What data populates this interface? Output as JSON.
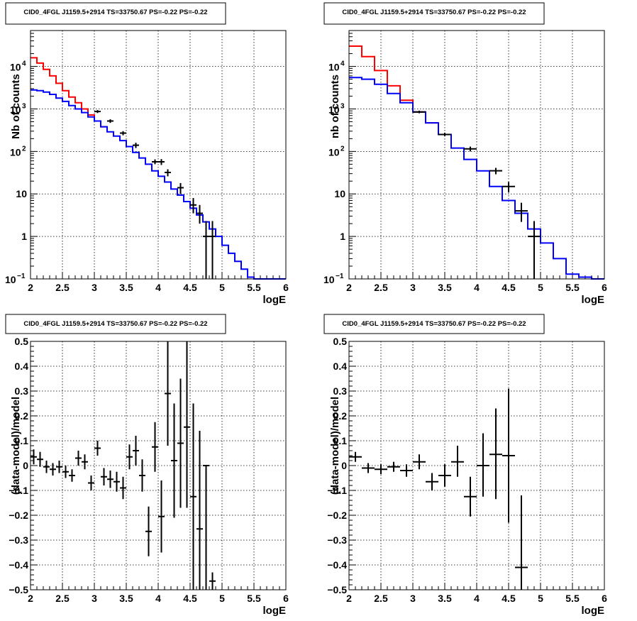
{
  "chart_data": [
    {
      "type": "line",
      "title": "CID0_4FGL J1159.5+2914 TS=33750.67 PS=-0.22 PS=-0.22",
      "xlabel": "logE",
      "ylabel": "Nb of counts",
      "yscale": "log",
      "xlim": [
        2,
        6
      ],
      "ylim": [
        0.1,
        70000
      ],
      "grid": true,
      "xticks": [
        "2",
        "2.5",
        "3",
        "3.5",
        "4",
        "4.5",
        "5",
        "5.5",
        "6"
      ],
      "yticks": [
        {
          "v": 0.1,
          "base": "10",
          "exp": "−1"
        },
        {
          "v": 1,
          "text": "1"
        },
        {
          "v": 10,
          "text": "10"
        },
        {
          "v": 100,
          "base": "10",
          "exp": "2"
        },
        {
          "v": 1000,
          "base": "10",
          "exp": "3"
        },
        {
          "v": 10000,
          "base": "10",
          "exp": "4"
        }
      ],
      "series": [
        {
          "color": "#ff0000",
          "step_edges": [
            2.0,
            2.1,
            2.2,
            2.3,
            2.4,
            2.5,
            2.6,
            2.7,
            2.8,
            2.9,
            3.0,
            3.1,
            3.2
          ],
          "values": [
            16000,
            12000,
            8500,
            6000,
            4000,
            2700,
            1900,
            1400,
            1000,
            720,
            520,
            380
          ]
        },
        {
          "color": "#0000ff",
          "step_edges": [
            2.0,
            2.1,
            2.2,
            2.3,
            2.4,
            2.5,
            2.6,
            2.7,
            2.8,
            2.9,
            3.0,
            3.1,
            3.2,
            3.3,
            3.4,
            3.5,
            3.6,
            3.7,
            3.8,
            3.9,
            4.0,
            4.1,
            4.2,
            4.3,
            4.4,
            4.5,
            4.6,
            4.7,
            4.8,
            4.9,
            5.0,
            5.1,
            5.2,
            5.3,
            5.4,
            5.5,
            6.0
          ],
          "values": [
            2800,
            2700,
            2500,
            2200,
            1800,
            1500,
            1200,
            1000,
            820,
            650,
            520,
            380,
            290,
            230,
            180,
            130,
            95,
            70,
            50,
            35,
            26,
            19,
            13,
            9.4,
            6.6,
            4.6,
            3.2,
            2.2,
            1.5,
            1.0,
            0.62,
            0.4,
            0.26,
            0.17,
            0.11,
            0.1
          ]
        }
      ],
      "points": [
        {
          "x": 3.05,
          "y": 870,
          "lo": 800,
          "hi": 940
        },
        {
          "x": 3.25,
          "y": 520,
          "lo": 470,
          "hi": 570
        },
        {
          "x": 3.45,
          "y": 270,
          "lo": 240,
          "hi": 300
        },
        {
          "x": 3.65,
          "y": 140,
          "lo": 120,
          "hi": 160
        },
        {
          "x": 3.95,
          "y": 57,
          "lo": 50,
          "hi": 65
        },
        {
          "x": 4.05,
          "y": 57,
          "lo": 48,
          "hi": 66
        },
        {
          "x": 4.15,
          "y": 32,
          "lo": 26,
          "hi": 38
        },
        {
          "x": 4.35,
          "y": 14,
          "lo": 10,
          "hi": 18
        },
        {
          "x": 4.55,
          "y": 5.5,
          "lo": 3.5,
          "hi": 8
        },
        {
          "x": 4.65,
          "y": 3.5,
          "lo": 2.0,
          "hi": 5.5
        },
        {
          "x": 4.75,
          "y": 1,
          "lo": 0.1,
          "hi": 2.3
        },
        {
          "x": 4.85,
          "y": 1,
          "lo": 0.1,
          "hi": 2.3
        }
      ],
      "point_half_width": 0.05
    },
    {
      "type": "line",
      "title": "CID0_4FGL J1159.5+2914 TS=33750.67 PS=-0.22 PS=-0.22",
      "xlabel": "logE",
      "ylabel": "nb of counts",
      "yscale": "log",
      "xlim": [
        2,
        6
      ],
      "ylim": [
        0.1,
        70000
      ],
      "grid": true,
      "xticks": [
        "2",
        "2.5",
        "3",
        "3.5",
        "4",
        "4.5",
        "5",
        "5.5",
        "6"
      ],
      "yticks": [
        {
          "v": 0.1,
          "base": "10",
          "exp": "−1"
        },
        {
          "v": 1,
          "text": "1"
        },
        {
          "v": 10,
          "text": "10"
        },
        {
          "v": 100,
          "base": "10",
          "exp": "2"
        },
        {
          "v": 1000,
          "base": "10",
          "exp": "3"
        },
        {
          "v": 10000,
          "base": "10",
          "exp": "4"
        }
      ],
      "series": [
        {
          "color": "#ff0000",
          "step_edges": [
            2.0,
            2.2,
            2.4,
            2.6,
            2.8,
            3.0,
            3.2,
            3.4
          ],
          "values": [
            30000,
            17000,
            8000,
            3500,
            1600,
            850,
            470
          ]
        },
        {
          "color": "#0000ff",
          "step_edges": [
            2.0,
            2.2,
            2.4,
            2.6,
            2.8,
            3.0,
            3.2,
            3.4,
            3.6,
            3.8,
            4.0,
            4.2,
            4.4,
            4.6,
            4.8,
            5.0,
            5.2,
            5.4,
            5.6,
            5.8,
            6.0
          ],
          "values": [
            5500,
            5000,
            3800,
            2300,
            1400,
            850,
            470,
            250,
            120,
            65,
            35,
            15,
            7,
            3.5,
            1.5,
            0.7,
            0.3,
            0.13,
            0.11,
            0.1
          ]
        }
      ],
      "points": [
        {
          "x": 3.1,
          "y": 850,
          "lo": 790,
          "hi": 910
        },
        {
          "x": 3.5,
          "y": 250,
          "lo": 230,
          "hi": 275
        },
        {
          "x": 3.9,
          "y": 115,
          "lo": 100,
          "hi": 130
        },
        {
          "x": 4.3,
          "y": 35,
          "lo": 29,
          "hi": 41
        },
        {
          "x": 4.5,
          "y": 15,
          "lo": 11,
          "hi": 19
        },
        {
          "x": 4.7,
          "y": 4,
          "lo": 2.2,
          "hi": 6.2
        },
        {
          "x": 4.9,
          "y": 1,
          "lo": 0.1,
          "hi": 2.3
        }
      ],
      "point_half_width": 0.1
    },
    {
      "type": "scatter",
      "title": "CID0_4FGL J1159.5+2914 TS=33750.67 PS=-0.22 PS=-0.22",
      "xlabel": "logE",
      "ylabel": "(data-model)/model",
      "yscale": "linear",
      "xlim": [
        2,
        6
      ],
      "ylim": [
        -0.5,
        0.5
      ],
      "grid": true,
      "xticks": [
        "2",
        "2.5",
        "3",
        "3.5",
        "4",
        "4.5",
        "5",
        "5.5",
        "6"
      ],
      "yticks": [
        "−0.5",
        "−0.4",
        "−0.3",
        "−0.2",
        "−0.1",
        "0",
        "0.1",
        "0.2",
        "0.3",
        "0.4",
        "0.5"
      ],
      "series": [],
      "points": [
        {
          "x": 2.05,
          "y": 0.035,
          "lo": 0.005,
          "hi": 0.065
        },
        {
          "x": 2.15,
          "y": 0.025,
          "lo": -0.005,
          "hi": 0.055
        },
        {
          "x": 2.25,
          "y": -0.005,
          "lo": -0.03,
          "hi": 0.02
        },
        {
          "x": 2.35,
          "y": -0.015,
          "lo": -0.04,
          "hi": 0.01
        },
        {
          "x": 2.45,
          "y": -0.005,
          "lo": -0.03,
          "hi": 0.02
        },
        {
          "x": 2.55,
          "y": -0.025,
          "lo": -0.05,
          "hi": 0.0
        },
        {
          "x": 2.65,
          "y": -0.04,
          "lo": -0.065,
          "hi": -0.015
        },
        {
          "x": 2.75,
          "y": 0.03,
          "lo": 0.0,
          "hi": 0.06
        },
        {
          "x": 2.85,
          "y": 0.015,
          "lo": -0.015,
          "hi": 0.045
        },
        {
          "x": 2.95,
          "y": -0.07,
          "lo": -0.1,
          "hi": -0.04
        },
        {
          "x": 3.05,
          "y": 0.07,
          "lo": 0.04,
          "hi": 0.1
        },
        {
          "x": 3.15,
          "y": -0.045,
          "lo": -0.08,
          "hi": -0.01
        },
        {
          "x": 3.25,
          "y": -0.055,
          "lo": -0.09,
          "hi": -0.02
        },
        {
          "x": 3.35,
          "y": -0.065,
          "lo": -0.105,
          "hi": -0.025
        },
        {
          "x": 3.45,
          "y": -0.09,
          "lo": -0.135,
          "hi": -0.045
        },
        {
          "x": 3.55,
          "y": 0.035,
          "lo": -0.015,
          "hi": 0.085
        },
        {
          "x": 3.65,
          "y": 0.06,
          "lo": 0.0,
          "hi": 0.12
        },
        {
          "x": 3.75,
          "y": -0.04,
          "lo": -0.105,
          "hi": 0.025
        },
        {
          "x": 3.85,
          "y": -0.265,
          "lo": -0.365,
          "hi": -0.165
        },
        {
          "x": 3.95,
          "y": 0.075,
          "lo": -0.025,
          "hi": 0.175
        },
        {
          "x": 4.05,
          "y": -0.205,
          "lo": -0.35,
          "hi": -0.06
        },
        {
          "x": 4.15,
          "y": 0.29,
          "lo": 0.08,
          "hi": 0.5
        },
        {
          "x": 4.25,
          "y": 0.02,
          "lo": -0.21,
          "hi": 0.25
        },
        {
          "x": 4.35,
          "y": 0.09,
          "lo": -0.17,
          "hi": 0.35
        },
        {
          "x": 4.45,
          "y": 0.155,
          "lo": -0.17,
          "hi": 0.5
        },
        {
          "x": 4.55,
          "y": -0.125,
          "lo": -0.5,
          "hi": 0.25
        },
        {
          "x": 4.65,
          "y": -0.255,
          "lo": -0.5,
          "hi": 0.14
        },
        {
          "x": 4.75,
          "y": 0.0,
          "lo": -0.5,
          "hi": 0.0
        },
        {
          "x": 4.85,
          "y": -0.465,
          "lo": -0.5,
          "hi": -0.43
        }
      ],
      "point_half_width": 0.05
    },
    {
      "type": "scatter",
      "title": "CID0_4FGL J1159.5+2914 TS=33750.67 PS=-0.22 PS=-0.22",
      "xlabel": "logE",
      "ylabel": "(data-model)/model",
      "yscale": "linear",
      "xlim": [
        2,
        6
      ],
      "ylim": [
        -0.5,
        0.5
      ],
      "grid": true,
      "xticks": [
        "2",
        "2.5",
        "3",
        "3.5",
        "4",
        "4.5",
        "5",
        "5.5",
        "6"
      ],
      "yticks": [
        "−0.5",
        "−0.4",
        "−0.3",
        "−0.2",
        "−0.1",
        "0",
        "0.1",
        "0.2",
        "0.3",
        "0.4",
        "0.5"
      ],
      "series": [],
      "points": [
        {
          "x": 2.1,
          "y": 0.035,
          "lo": 0.015,
          "hi": 0.055
        },
        {
          "x": 2.3,
          "y": -0.01,
          "lo": -0.03,
          "hi": 0.01
        },
        {
          "x": 2.5,
          "y": -0.015,
          "lo": -0.035,
          "hi": 0.005
        },
        {
          "x": 2.7,
          "y": -0.005,
          "lo": -0.025,
          "hi": 0.015
        },
        {
          "x": 2.9,
          "y": -0.02,
          "lo": -0.045,
          "hi": 0.005
        },
        {
          "x": 3.1,
          "y": 0.015,
          "lo": -0.015,
          "hi": 0.045
        },
        {
          "x": 3.3,
          "y": -0.065,
          "lo": -0.1,
          "hi": -0.03
        },
        {
          "x": 3.5,
          "y": -0.04,
          "lo": -0.085,
          "hi": 0.005
        },
        {
          "x": 3.7,
          "y": 0.015,
          "lo": -0.045,
          "hi": 0.08
        },
        {
          "x": 3.9,
          "y": -0.125,
          "lo": -0.205,
          "hi": -0.045
        },
        {
          "x": 4.1,
          "y": 0.0,
          "lo": -0.125,
          "hi": 0.13
        },
        {
          "x": 4.3,
          "y": 0.045,
          "lo": -0.135,
          "hi": 0.23
        },
        {
          "x": 4.5,
          "y": 0.04,
          "lo": -0.23,
          "hi": 0.31
        },
        {
          "x": 4.7,
          "y": -0.41,
          "lo": -0.5,
          "hi": -0.12
        }
      ],
      "point_half_width": 0.1
    }
  ]
}
